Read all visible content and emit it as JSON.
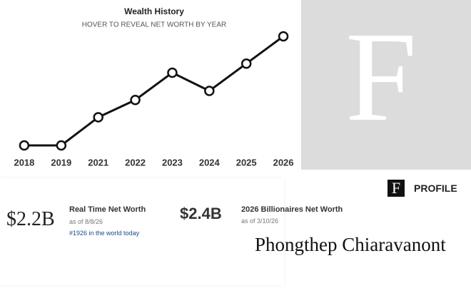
{
  "chart_data": {
    "type": "line",
    "title": "Wealth History",
    "subtitle": "HOVER TO REVEAL NET WORTH BY YEAR",
    "categories": [
      "2018",
      "2019",
      "2021",
      "2022",
      "2023",
      "2024",
      "2025",
      "2026"
    ],
    "values": [
      1.2,
      1.2,
      1.51,
      1.7,
      2.0,
      1.8,
      2.1,
      2.4
    ],
    "color": "#111111",
    "ylim": [
      1.0,
      2.5
    ]
  },
  "logo_letter": "F",
  "profile": {
    "label": "PROFILE",
    "name": "Phongthep Chiaravanont"
  },
  "net_worth": [
    {
      "amount": "$2.2B",
      "title": "Real Time Net Worth",
      "date": "as of 8/8/26",
      "rank": "#1926 in the world today"
    },
    {
      "amount": "$2.4B",
      "title": "2026 Billionaires Net Worth",
      "date": "as of 3/10/26"
    }
  ]
}
